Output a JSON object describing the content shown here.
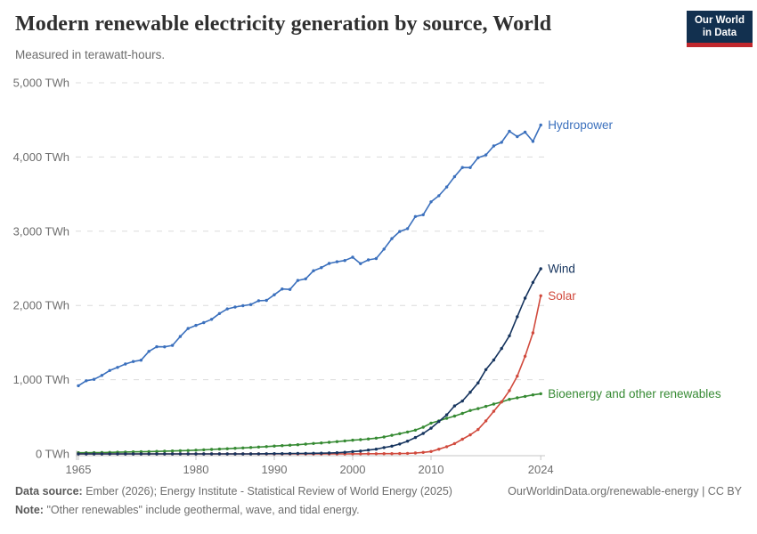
{
  "header": {
    "title": "Modern renewable electricity generation by source, World",
    "subtitle": "Measured in terawatt-hours.",
    "logo": {
      "line1": "Our World",
      "line2": "in Data",
      "bg_color": "#12304f",
      "bar_color": "#c0272d"
    }
  },
  "footer": {
    "data_source_label": "Data source:",
    "data_source_text": "Ember (2026); Energy Institute - Statistical Review of World Energy (2025)",
    "note_label": "Note:",
    "note_text": "\"Other renewables\" include geothermal, wave, and tidal energy.",
    "link": "OurWorldinData.org/renewable-energy | CC BY"
  },
  "chart_data": {
    "type": "line",
    "title": "Modern renewable electricity generation by source, World",
    "unit": "TWh",
    "x_start": 1965,
    "x_end": 2024,
    "x_interval": 1,
    "ylim": [
      0,
      5000
    ],
    "grid": "dashed-horizontal",
    "legend": "end-labels",
    "grid_color": "#dcdcdc",
    "axis_color": "#c4c4c4",
    "tick_label_color": "#6e6e6e",
    "yticks": [
      {
        "value": 0,
        "label": "0 TWh"
      },
      {
        "value": 1000,
        "label": "1,000 TWh"
      },
      {
        "value": 2000,
        "label": "2,000 TWh"
      },
      {
        "value": 3000,
        "label": "3,000 TWh"
      },
      {
        "value": 4000,
        "label": "4,000 TWh"
      },
      {
        "value": 5000,
        "label": "5,000 TWh"
      }
    ],
    "xticks": [
      1965,
      1980,
      1990,
      2000,
      2010,
      2024
    ],
    "series": [
      {
        "name": "Bioenergy and other renewables",
        "color": "#368a33",
        "values": [
          15,
          16,
          17,
          18,
          20,
          23,
          25,
          27,
          29,
          31,
          34,
          37,
          40,
          43,
          46,
          50,
          55,
          60,
          65,
          70,
          75,
          80,
          86,
          92,
          98,
          105,
          112,
          118,
          124,
          132,
          140,
          148,
          156,
          165,
          175,
          185,
          192,
          202,
          212,
          228,
          250,
          272,
          295,
          320,
          360,
          415,
          445,
          480,
          510,
          545,
          585,
          610,
          640,
          672,
          700,
          735,
          755,
          775,
          795,
          810
        ]
      },
      {
        "name": "Solar",
        "color": "#d14a3d",
        "values": [
          0,
          0,
          0,
          0,
          0,
          0,
          0,
          0,
          0,
          0,
          0,
          0,
          0,
          0,
          0,
          0,
          0,
          0,
          0,
          0,
          0,
          0,
          0,
          0,
          0,
          0,
          0,
          0,
          0,
          0,
          0,
          0,
          0,
          0,
          0,
          1,
          1,
          2,
          2,
          3,
          4,
          5,
          7,
          12,
          20,
          32,
          63,
          97,
          139,
          198,
          256,
          328,
          445,
          574,
          701,
          853,
          1048,
          1315,
          1631,
          2131
        ]
      },
      {
        "name": "Wind",
        "color": "#16345e",
        "values": [
          0,
          0,
          0,
          0,
          0,
          0,
          0,
          0,
          0,
          0,
          0,
          0,
          0,
          0,
          0,
          0,
          0,
          0,
          0,
          0,
          0,
          0,
          0,
          1,
          2,
          4,
          4,
          5,
          6,
          7,
          8,
          9,
          12,
          16,
          21,
          31,
          38,
          52,
          63,
          85,
          104,
          133,
          171,
          221,
          276,
          346,
          437,
          526,
          646,
          712,
          831,
          957,
          1136,
          1265,
          1420,
          1591,
          1848,
          2098,
          2310,
          2494
        ]
      },
      {
        "name": "Hydropower",
        "color": "#3b70bd",
        "values": [
          919,
          986,
          1005,
          1058,
          1124,
          1166,
          1211,
          1245,
          1262,
          1381,
          1444,
          1443,
          1462,
          1582,
          1690,
          1732,
          1768,
          1813,
          1891,
          1953,
          1979,
          1996,
          2012,
          2064,
          2068,
          2144,
          2222,
          2216,
          2337,
          2359,
          2468,
          2510,
          2566,
          2589,
          2606,
          2650,
          2564,
          2614,
          2632,
          2759,
          2900,
          2996,
          3035,
          3198,
          3222,
          3396,
          3479,
          3596,
          3735,
          3858,
          3857,
          3990,
          4028,
          4149,
          4198,
          4347,
          4274,
          4334,
          4210,
          4430
        ]
      }
    ]
  }
}
